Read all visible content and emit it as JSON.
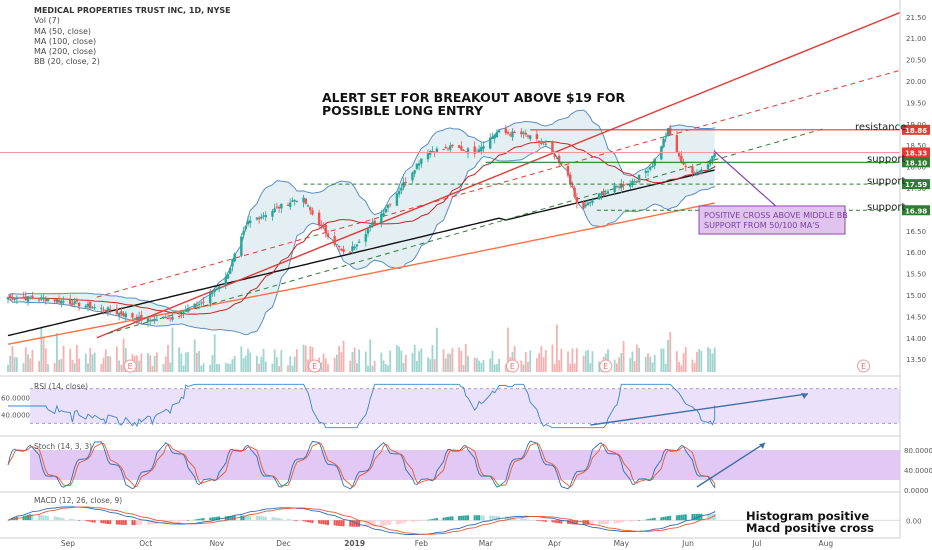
{
  "header": {
    "symbol_line": "MEDICAL PROPERTIES TRUST INC, 1D, NYSE",
    "indicators": [
      "Vol (7)",
      "MA (50, close)",
      "MA (100, close)",
      "MA (200, close)",
      "BB (20, close, 2)"
    ]
  },
  "price_axis": {
    "ticks": [
      "21.50",
      "21.00",
      "20.50",
      "20.00",
      "19.50",
      "19.00",
      "18.50",
      "18.00",
      "17.50",
      "17.00",
      "16.50",
      "16.00",
      "15.50",
      "15.00",
      "14.50",
      "14.00",
      "13.50"
    ],
    "tick_values": [
      21.5,
      21.0,
      20.5,
      20.0,
      19.5,
      19.0,
      18.5,
      18.0,
      17.5,
      17.0,
      16.5,
      16.0,
      15.5,
      15.0,
      14.5,
      14.0,
      13.5
    ],
    "ylim": [
      13.2,
      21.8
    ],
    "price_tags": [
      {
        "text": "18.86",
        "value": 18.86,
        "color": "#e53935"
      },
      {
        "text": "18.33",
        "value": 18.33,
        "color": "#e53935"
      },
      {
        "text": "18.10",
        "value": 18.1,
        "color": "#2e7d32"
      },
      {
        "text": "17.59",
        "value": 17.59,
        "color": "#2e7d32"
      },
      {
        "text": "16.98",
        "value": 16.98,
        "color": "#2e7d32"
      }
    ]
  },
  "time_axis": {
    "labels": [
      "Sep",
      "Oct",
      "Nov",
      "Dec",
      "2019",
      "Feb",
      "Mar",
      "Apr",
      "May",
      "Jun",
      "Jul",
      "Aug"
    ],
    "label_days": [
      27,
      62,
      94,
      124,
      156,
      186,
      215,
      246,
      276,
      306,
      337,
      368
    ],
    "xlim_days": [
      0,
      405
    ],
    "last_day": 318
  },
  "annotations": {
    "alert_line1": "ALERT SET FOR BREAKOUT ABOVE $19 FOR",
    "alert_line2": "POSSIBLE LONG ENTRY",
    "resistance": "resistance",
    "support_1": "support",
    "support_2": "support",
    "support_3": "support",
    "callout_line1": "POSITIVE CROSS ABOVE MIDDLE BB",
    "callout_line2": "SUPPORT FROM 50/100 MA'S",
    "macd_note1": "Histogram positive",
    "macd_note2": "Macd positive cross",
    "earnings_marker": "E"
  },
  "rsi": {
    "label": "RSI (14, close)",
    "ticks": [
      "60.0000",
      "40.0000"
    ],
    "tick_values": [
      60,
      40
    ],
    "ylim": [
      20,
      80
    ]
  },
  "stoch": {
    "label": "Stoch (14, 3, 3)",
    "ticks": [
      "80.0000",
      "40.0000",
      "0.0000"
    ],
    "tick_values": [
      80,
      40,
      0
    ],
    "ylim": [
      0,
      100
    ]
  },
  "macd": {
    "label": "MACD (12, 26, close, 9)",
    "ticks": [
      "0.00"
    ],
    "tick_values": [
      0
    ],
    "ylim": [
      -0.22,
      0.42
    ]
  },
  "colors": {
    "up": "#26a69a",
    "down": "#ef5350",
    "ma50": "#c62828",
    "ma100": "#111111",
    "ma200": "#ff7043",
    "bb": "#5c8fbf",
    "bb_fill": "#dbe9ef",
    "resistance": "#e53935",
    "support": "#2e7d32",
    "rsi_band": "#ece1fa",
    "stoch_band": "#e1c8f5",
    "callout_bg": "#e0c4ee",
    "callout_border": "#8e44ad"
  },
  "chart_data": {
    "type": "candlestick",
    "title": "MEDICAL PROPERTIES TRUST INC, 1D, NYSE",
    "x_labels": [
      "Sep",
      "Oct",
      "Nov",
      "Dec",
      "2019",
      "Feb",
      "Mar",
      "Apr",
      "May",
      "Jun",
      "Jul",
      "Aug"
    ],
    "ylim": [
      13.2,
      21.8
    ],
    "close_anchors": [
      {
        "day": 0,
        "close": 14.95
      },
      {
        "day": 20,
        "close": 14.9
      },
      {
        "day": 45,
        "close": 14.65
      },
      {
        "day": 62,
        "close": 14.4
      },
      {
        "day": 75,
        "close": 14.5
      },
      {
        "day": 88,
        "close": 14.85
      },
      {
        "day": 98,
        "close": 15.4
      },
      {
        "day": 108,
        "close": 16.7
      },
      {
        "day": 120,
        "close": 17.0
      },
      {
        "day": 132,
        "close": 17.3
      },
      {
        "day": 138,
        "close": 16.8
      },
      {
        "day": 152,
        "close": 15.9
      },
      {
        "day": 158,
        "close": 16.3
      },
      {
        "day": 168,
        "close": 16.9
      },
      {
        "day": 178,
        "close": 17.6
      },
      {
        "day": 188,
        "close": 18.35
      },
      {
        "day": 200,
        "close": 18.45
      },
      {
        "day": 210,
        "close": 18.35
      },
      {
        "day": 220,
        "close": 18.8
      },
      {
        "day": 232,
        "close": 18.75
      },
      {
        "day": 242,
        "close": 18.5
      },
      {
        "day": 252,
        "close": 17.8
      },
      {
        "day": 257,
        "close": 16.95
      },
      {
        "day": 265,
        "close": 17.3
      },
      {
        "day": 275,
        "close": 17.55
      },
      {
        "day": 283,
        "close": 17.7
      },
      {
        "day": 290,
        "close": 18.05
      },
      {
        "day": 297,
        "close": 18.85
      },
      {
        "day": 302,
        "close": 18.2
      },
      {
        "day": 308,
        "close": 17.8
      },
      {
        "day": 314,
        "close": 18.0
      },
      {
        "day": 318,
        "close": 18.33
      }
    ],
    "last_close": 18.33,
    "resistance_level": 18.86,
    "support_levels": [
      18.1,
      17.59,
      16.98
    ],
    "earnings_days": [
      55,
      138,
      227,
      269,
      385
    ]
  }
}
